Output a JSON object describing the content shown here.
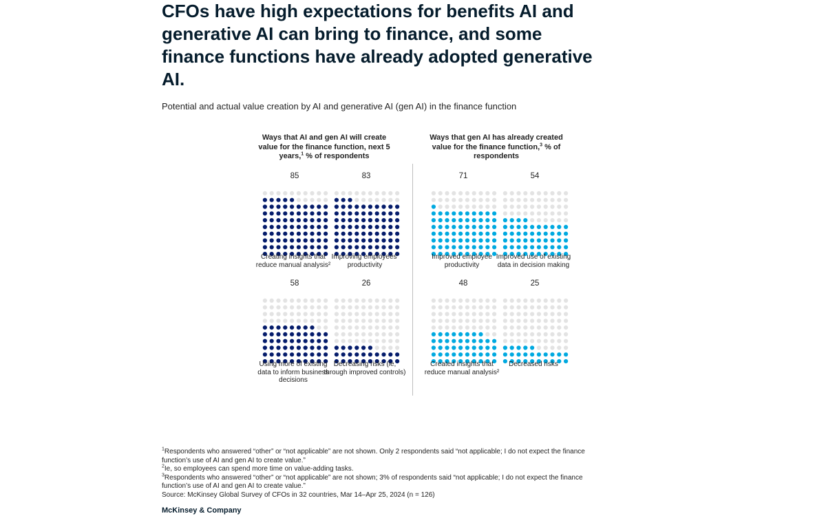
{
  "title": "CFOs have high expectations for benefits AI and generative AI can bring to finance, and some finance functions have already adopted generative AI.",
  "subtitle": "Potential and actual value creation by AI and generative AI (gen AI) in the finance function",
  "colors": {
    "dark_navy": "#051c6b",
    "cyan": "#00a9e0",
    "empty": "#e3e3e3",
    "divider": "#bdbdbd"
  },
  "panels": [
    {
      "heading": "Ways that AI and gen AI will create value for the finance function, next 5 years,",
      "heading_sup": "1",
      "heading_tail": " % of respondents"
    },
    {
      "heading": "Ways that gen AI has already created value for the finance function,",
      "heading_sup": "3",
      "heading_tail": " % of respondents"
    }
  ],
  "chart_data": {
    "type": "waffle",
    "unit": "% of respondents",
    "grid": "10x10 dots, 1 dot = 1%",
    "groups": [
      {
        "panel": "Ways that AI and gen AI will create value for the finance function, next 5 years, % of respondents",
        "color": "#051c6b",
        "items": [
          {
            "label": "Creating insights that reduce manual analysis²",
            "value": 85
          },
          {
            "label": "Improving employees' productivity",
            "value": 83
          },
          {
            "label": "Using more of existing data to inform business decisions",
            "value": 58
          },
          {
            "label": "Decreasing risks (ie, through improved controls)",
            "value": 26
          }
        ]
      },
      {
        "panel": "Ways that gen AI has already created value for the finance function, % of respondents",
        "color": "#00a9e0",
        "items": [
          {
            "label": "Improved employee productivity",
            "value": 71
          },
          {
            "label": "Improved use of existing data in decision making",
            "value": 54
          },
          {
            "label": "Created insights that reduce manual analysis²",
            "value": 48
          },
          {
            "label": "Decreased risks",
            "value": 25
          }
        ]
      }
    ]
  },
  "footnotes": [
    {
      "sup": "1",
      "text": "Respondents who answered “other” or “not applicable” are not shown. Only 2 respondents said “not applicable; I do not expect the finance function’s use of AI and gen AI to create value.”"
    },
    {
      "sup": "2",
      "text": "Ie, so employees can spend more time on value-adding tasks."
    },
    {
      "sup": "3",
      "text": "Respondents who answered “other” or “not applicable” are not shown; 3% of respondents said “not applicable; I do not expect the finance function’s use of AI and gen AI to create value.”"
    }
  ],
  "source": "Source: McKinsey Global Survey of CFOs in 32 countries, Mar 14–Apr 25, 2024 (n = 126)",
  "brand": "McKinsey & Company"
}
